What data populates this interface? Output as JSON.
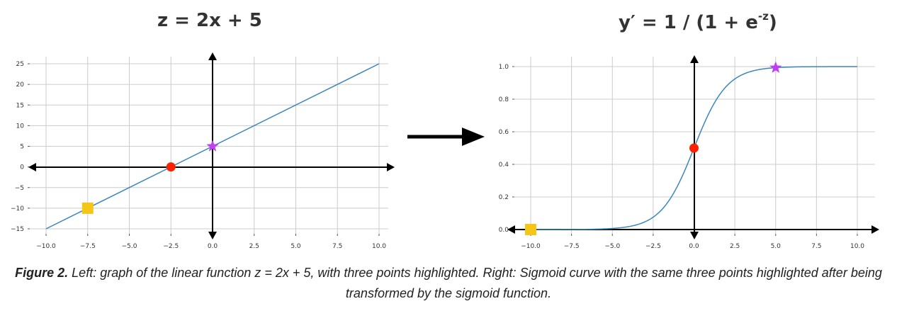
{
  "titles": {
    "left": "z = 2x + 5",
    "right_prefix": "y′ = 1 / (1 + e",
    "right_sup": "-z",
    "right_suffix": ")"
  },
  "caption": {
    "label": "Figure 2.",
    "text": "Left: graph of the linear function z = 2x + 5, with three points highlighted. Right: Sigmoid curve with the same three points highlighted after being transformed by the sigmoid function."
  },
  "colors": {
    "line": "#3a87bd",
    "grid": "#cccccc",
    "axis": "#000000",
    "square": "#f5c518",
    "circle": "#ff2200",
    "star": "#c040ef",
    "arrow": "#000000"
  },
  "chart_data": [
    {
      "type": "line",
      "title": "z = 2x + 5",
      "x": [
        -10,
        10
      ],
      "y": [
        -15,
        25
      ],
      "xlim": [
        -10,
        10
      ],
      "ylim": [
        -15,
        25
      ],
      "xticks": [
        -10,
        -7.5,
        -5,
        -2.5,
        0,
        2.5,
        5,
        7.5,
        10
      ],
      "xtick_labels": [
        "−10.0",
        "−7.5",
        "−5.0",
        "−2.5",
        "0.0",
        "2.5",
        "5.0",
        "7.5",
        "10.0"
      ],
      "yticks": [
        -15,
        -10,
        -5,
        0,
        5,
        10,
        15,
        20,
        25
      ],
      "ytick_labels": [
        "−15",
        "−10",
        "−5",
        "0",
        "5",
        "10",
        "15",
        "20",
        "25"
      ],
      "grid": true,
      "points": [
        {
          "marker": "square",
          "x": -7.5,
          "y": -10
        },
        {
          "marker": "circle",
          "x": -2.5,
          "y": 0
        },
        {
          "marker": "star",
          "x": 0,
          "y": 5
        }
      ]
    },
    {
      "type": "line",
      "title": "y′ = 1 / (1 + e^-z)",
      "function": "sigmoid",
      "x": [
        -10,
        -7.5,
        -5,
        -2.5,
        0,
        2.5,
        5,
        7.5,
        10
      ],
      "y": [
        4.54e-05,
        0.000553,
        0.00669,
        0.0759,
        0.5,
        0.924,
        0.993,
        0.99945,
        0.99995
      ],
      "xlim": [
        -10,
        10
      ],
      "ylim": [
        0,
        1
      ],
      "xticks": [
        -10,
        -7.5,
        -5,
        -2.5,
        0,
        2.5,
        5,
        7.5,
        10
      ],
      "xtick_labels": [
        "−10.0",
        "−7.5",
        "−5.0",
        "−2.5",
        "0.0",
        "2.5",
        "5.0",
        "7.5",
        "10.0"
      ],
      "yticks": [
        0,
        0.2,
        0.4,
        0.6,
        0.8,
        1.0
      ],
      "ytick_labels": [
        "0.0",
        "0.2",
        "0.4",
        "0.6",
        "0.8",
        "1.0"
      ],
      "grid": true,
      "points": [
        {
          "marker": "square",
          "x": -10,
          "y": 4.54e-05
        },
        {
          "marker": "circle",
          "x": 0,
          "y": 0.5
        },
        {
          "marker": "star",
          "x": 5,
          "y": 0.993
        }
      ]
    }
  ]
}
